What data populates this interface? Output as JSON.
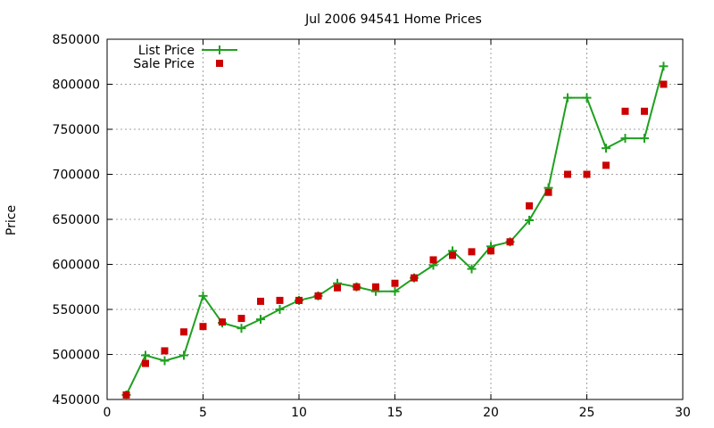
{
  "chart_data": {
    "type": "line",
    "title": "Jul 2006 94541 Home Prices",
    "xlabel": "",
    "ylabel": "Price",
    "xlim": [
      0,
      30
    ],
    "ylim": [
      450000,
      850000
    ],
    "xticks": [
      "0",
      "5",
      "10",
      "15",
      "20",
      "25",
      "30"
    ],
    "yticks": [
      "450000",
      "500000",
      "550000",
      "600000",
      "650000",
      "700000",
      "750000",
      "800000",
      "850000"
    ],
    "grid": true,
    "legend_position": "top-left",
    "series": [
      {
        "name": "List Price",
        "style": "line+plus",
        "color": "#1fa01f",
        "x": [
          1,
          2,
          3,
          4,
          5,
          6,
          7,
          8,
          9,
          10,
          11,
          12,
          13,
          14,
          15,
          16,
          17,
          18,
          19,
          20,
          21,
          22,
          23,
          24,
          25,
          26,
          27,
          28,
          29
        ],
        "values": [
          455000,
          499000,
          493000,
          499000,
          565000,
          535000,
          529000,
          539000,
          550000,
          560000,
          565000,
          579000,
          575000,
          570000,
          570000,
          585000,
          599000,
          615000,
          595000,
          620000,
          625000,
          649000,
          685000,
          785000,
          785000,
          729000,
          740000,
          740000,
          820000
        ]
      },
      {
        "name": "Sale Price",
        "style": "square",
        "color": "#cc0000",
        "x": [
          1,
          2,
          3,
          4,
          5,
          6,
          7,
          8,
          9,
          10,
          11,
          12,
          13,
          14,
          15,
          16,
          17,
          18,
          19,
          20,
          21,
          22,
          23,
          24,
          25,
          26,
          27,
          28,
          29
        ],
        "values": [
          455000,
          490000,
          504000,
          525000,
          531000,
          536000,
          540000,
          559000,
          560000,
          560000,
          565000,
          574000,
          575000,
          575000,
          579000,
          585000,
          605000,
          610000,
          614000,
          615000,
          625000,
          665000,
          680000,
          700000,
          700000,
          710000,
          770000,
          770000,
          800000
        ]
      }
    ]
  }
}
